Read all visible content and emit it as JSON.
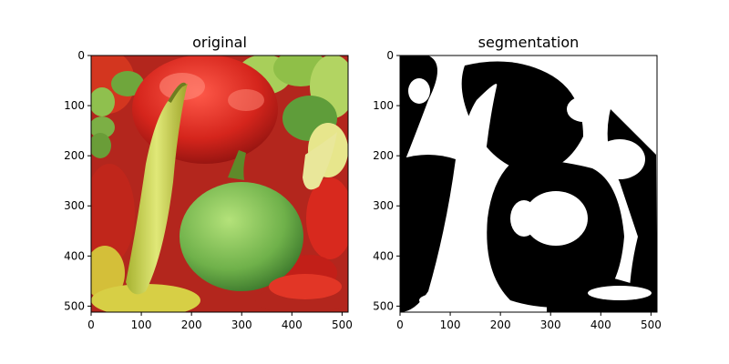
{
  "panels": [
    {
      "title": "original",
      "x_ticks": [
        "0",
        "100",
        "200",
        "300",
        "400",
        "500"
      ],
      "y_ticks": [
        "0",
        "100",
        "200",
        "300",
        "400",
        "500"
      ],
      "x_range": [
        0,
        512
      ],
      "y_range": [
        0,
        512
      ]
    },
    {
      "title": "segmentation",
      "x_ticks": [
        "0",
        "100",
        "200",
        "300",
        "400",
        "500"
      ],
      "y_ticks": [
        "0",
        "100",
        "200",
        "300",
        "400",
        "500"
      ],
      "x_range": [
        0,
        512
      ],
      "y_range": [
        0,
        512
      ]
    }
  ],
  "colors": {
    "frame": "#000000",
    "seg_black": "#000000",
    "seg_white": "#ffffff"
  }
}
